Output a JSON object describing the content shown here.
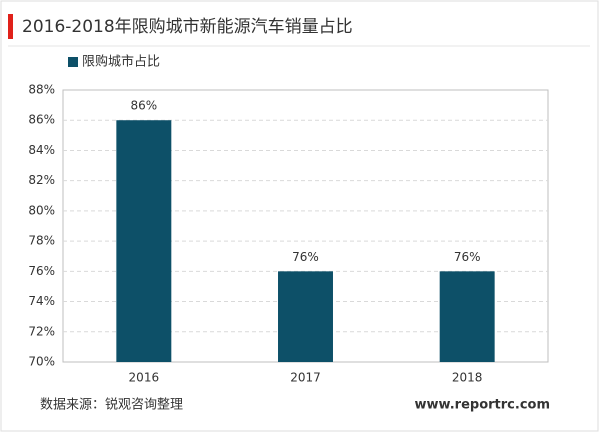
{
  "chart_data": {
    "type": "bar",
    "title": "2016-2018年限购城市新能源汽车销量占比",
    "categories": [
      "2016",
      "2017",
      "2018"
    ],
    "series": [
      {
        "name": "限购城市占比",
        "color": "#0d5068",
        "values": [
          86,
          76,
          76
        ],
        "value_labels": [
          "86%",
          "76%",
          "76%"
        ]
      }
    ],
    "ylim": [
      70,
      88
    ],
    "yticks": [
      {
        "value": 70,
        "label": "70%"
      },
      {
        "value": 72,
        "label": "72%"
      },
      {
        "value": 74,
        "label": "74%"
      },
      {
        "value": 76,
        "label": "76%"
      },
      {
        "value": 78,
        "label": "78%"
      },
      {
        "value": 80,
        "label": "80%"
      },
      {
        "value": 82,
        "label": "82%"
      },
      {
        "value": 84,
        "label": "84%"
      },
      {
        "value": 86,
        "label": "86%"
      },
      {
        "value": 88,
        "label": "88%"
      }
    ],
    "grid": true,
    "source": "数据来源：锐观咨询整理",
    "website": "www.reportrc.com"
  }
}
